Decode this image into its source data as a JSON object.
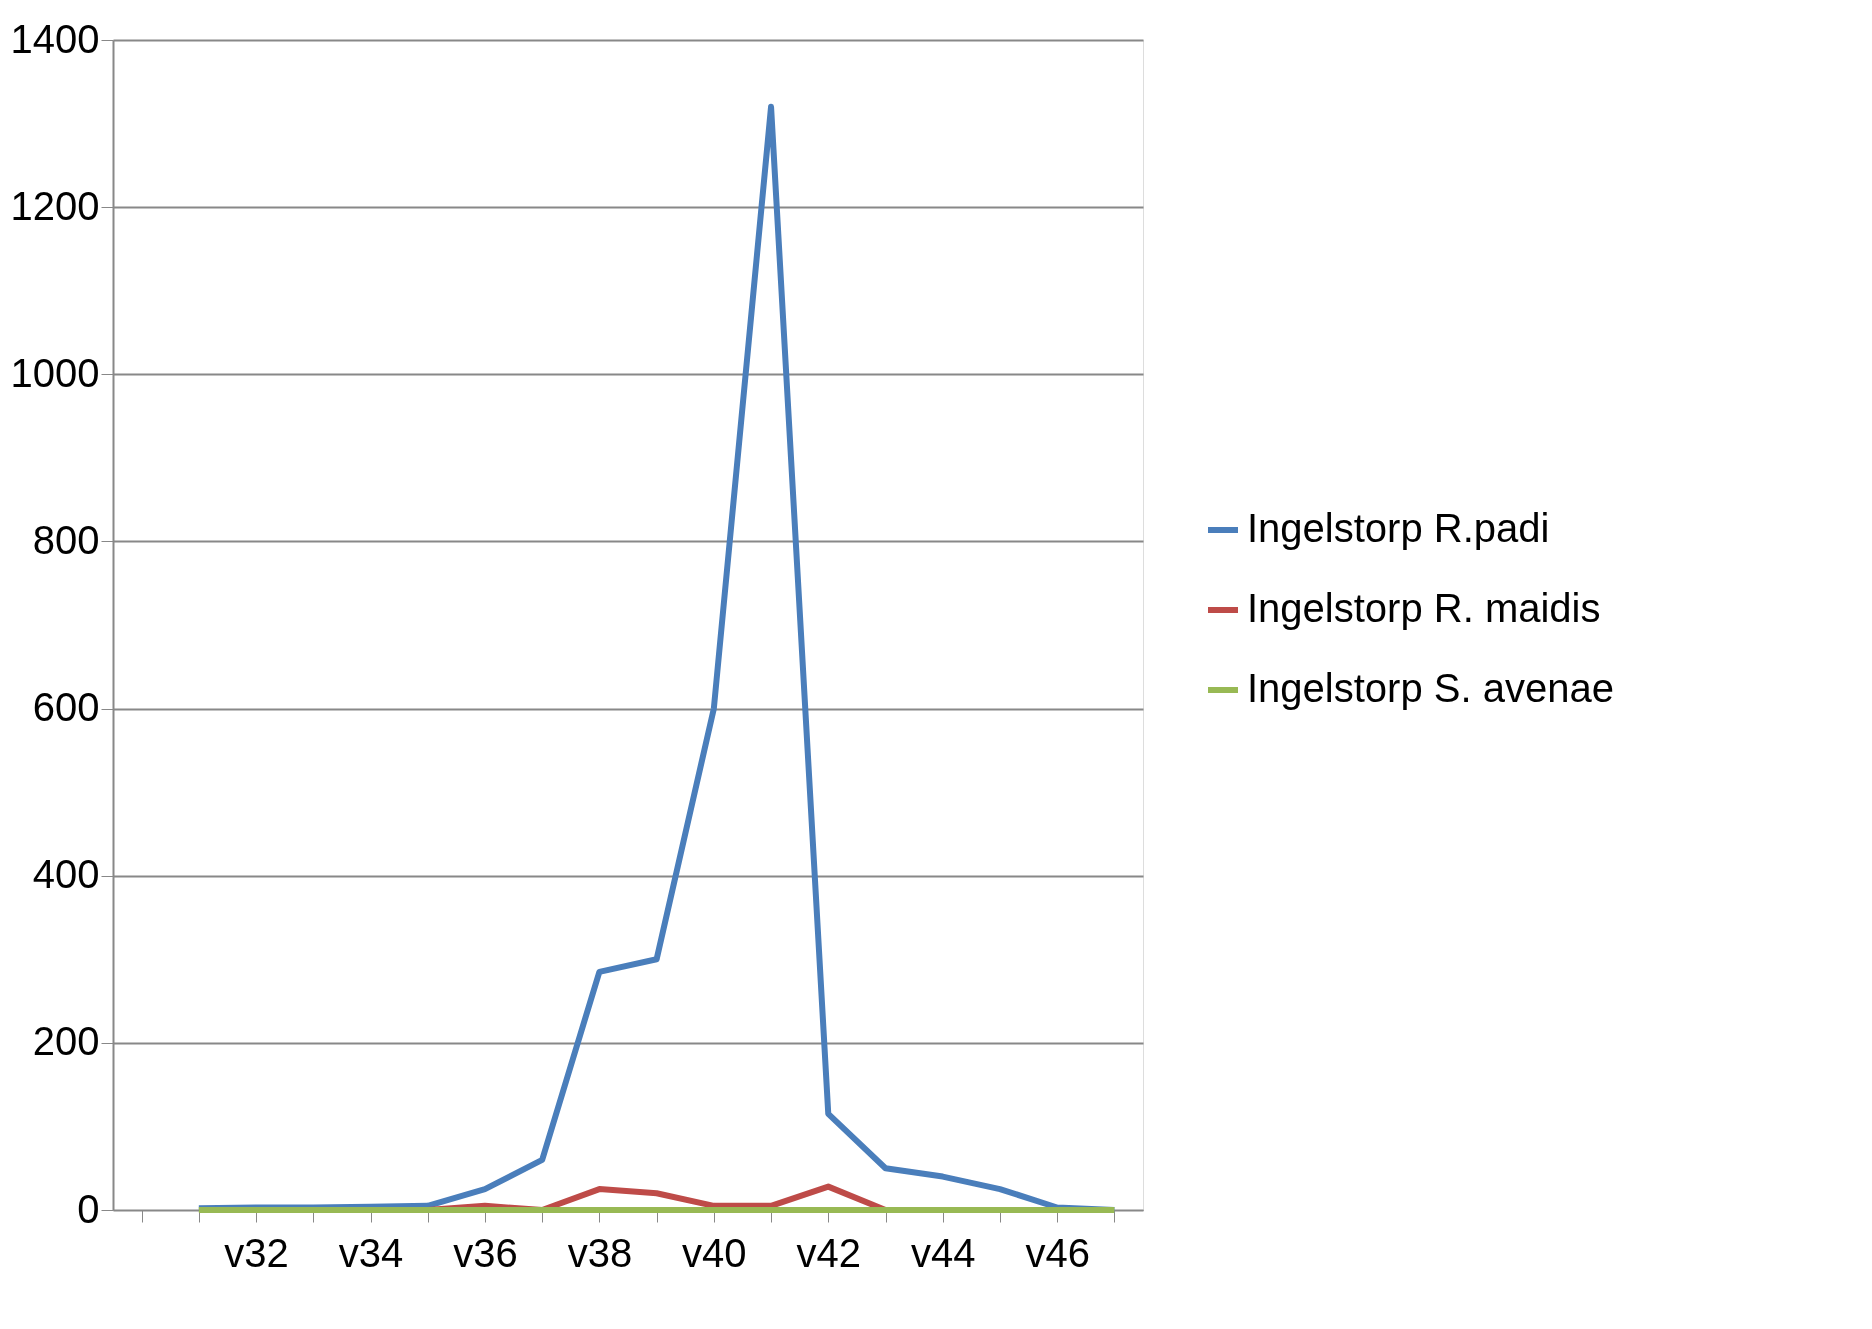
{
  "chart_data": {
    "type": "line",
    "categories": [
      null,
      null,
      "v32",
      null,
      "v34",
      null,
      "v36",
      null,
      "v38",
      null,
      "v40",
      null,
      "v42",
      null,
      "v44",
      null,
      "v46",
      null
    ],
    "series": [
      {
        "name": "Ingelstorp R.padi",
        "color": "#4a7ebb",
        "values": [
          null,
          2,
          3,
          3,
          4,
          5,
          25,
          60,
          285,
          300,
          600,
          1320,
          115,
          50,
          40,
          25,
          3,
          0
        ]
      },
      {
        "name": "Ingelstorp R. maidis",
        "color": "#be4b48",
        "values": [
          null,
          null,
          null,
          null,
          null,
          0,
          5,
          0,
          25,
          20,
          5,
          5,
          28,
          0,
          null,
          null,
          null,
          null
        ]
      },
      {
        "name": "Ingelstorp S. avenae",
        "color": "#98b954",
        "values": [
          null,
          0,
          0,
          0,
          0,
          0,
          0,
          0,
          0,
          0,
          0,
          0,
          0,
          0,
          0,
          0,
          0,
          0
        ]
      }
    ],
    "ylim": [
      0,
      1400
    ],
    "yticks": [
      0,
      200,
      400,
      600,
      800,
      1000,
      1200,
      1400
    ],
    "grid": "y",
    "legend": "right",
    "marker": "none",
    "line_style": "solid"
  }
}
